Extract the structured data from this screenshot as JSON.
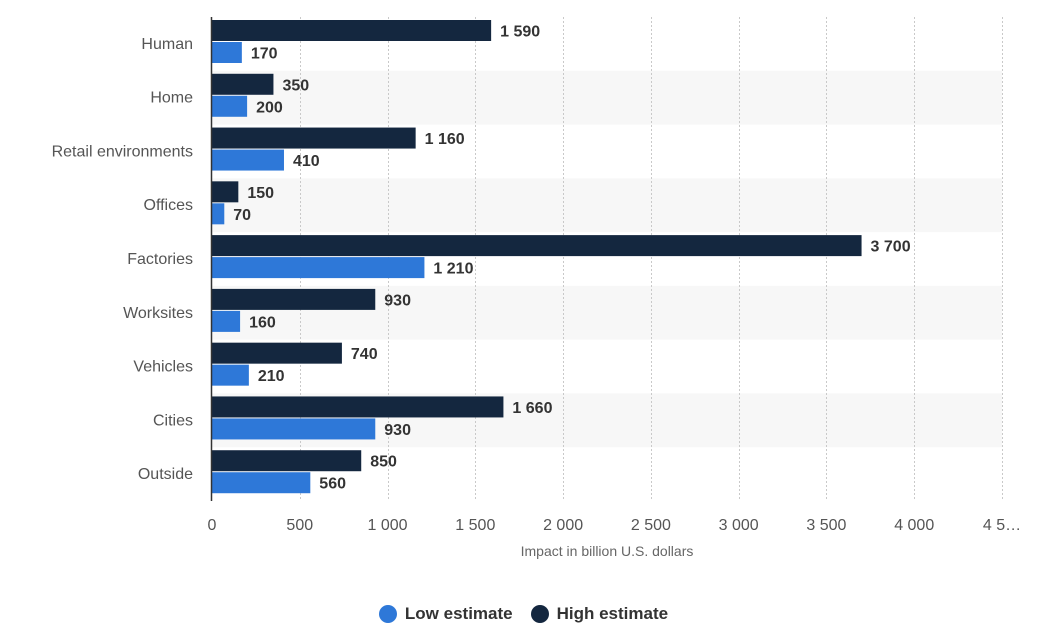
{
  "chart_data": {
    "type": "bar",
    "orientation": "horizontal",
    "categories": [
      "Human",
      "Home",
      "Retail environments",
      "Offices",
      "Factories",
      "Worksites",
      "Vehicles",
      "Cities",
      "Outside"
    ],
    "series": [
      {
        "name": "High estimate",
        "color": "#14273f",
        "values": [
          1590,
          350,
          1160,
          150,
          3700,
          930,
          740,
          1660,
          850
        ],
        "labels": [
          "1 590",
          "350",
          "1 160",
          "150",
          "3 700",
          "930",
          "740",
          "1 660",
          "850"
        ]
      },
      {
        "name": "Low estimate",
        "color": "#2e78d8",
        "values": [
          170,
          200,
          410,
          70,
          1210,
          160,
          210,
          930,
          560
        ],
        "labels": [
          "170",
          "200",
          "410",
          "70",
          "1 210",
          "160",
          "210",
          "930",
          "560"
        ]
      }
    ],
    "xlabel": "Impact in billion U.S. dollars",
    "xlim": [
      0,
      4500
    ],
    "xticks": [
      0,
      500,
      1000,
      1500,
      2000,
      2500,
      3000,
      3500,
      4000,
      4500
    ],
    "xtick_labels": [
      "0",
      "500",
      "1 000",
      "1 500",
      "2 000",
      "2 500",
      "3 000",
      "3 500",
      "4 000",
      "4 5…"
    ],
    "grid": true,
    "legend": {
      "position": "bottom-center",
      "items": [
        {
          "label": "Low estimate",
          "color": "#2e78d8"
        },
        {
          "label": "High estimate",
          "color": "#14273f"
        }
      ]
    }
  }
}
